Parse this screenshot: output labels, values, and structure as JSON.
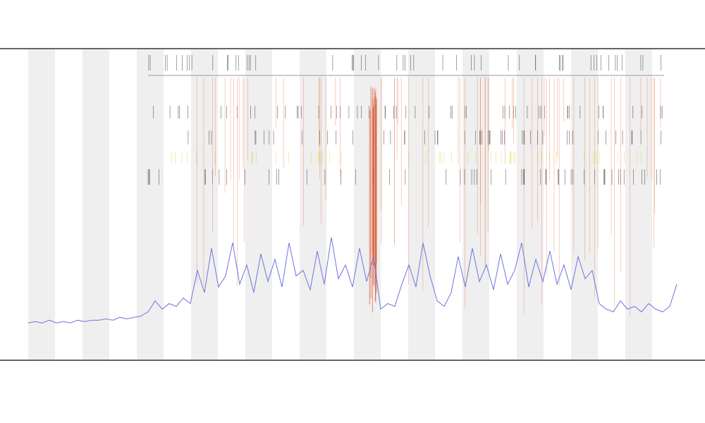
{
  "chart_data": {
    "type": "line",
    "color": "#6f73e0",
    "ylim": [
      0,
      100
    ],
    "values": [
      1,
      1.5,
      1,
      2,
      1,
      1.5,
      1,
      2,
      1.5,
      2,
      2,
      2.5,
      2,
      3,
      2.5,
      3,
      3.5,
      5,
      9,
      6,
      8,
      7,
      10,
      8,
      20,
      12,
      28,
      14,
      18,
      30,
      15,
      22,
      12,
      26,
      16,
      24,
      14,
      30,
      18,
      20,
      13,
      27,
      15,
      32,
      17,
      22,
      14,
      28,
      16,
      25,
      6,
      8,
      7,
      15,
      22,
      14,
      30,
      18,
      9,
      7,
      12,
      25,
      14,
      28,
      16,
      22,
      13,
      26,
      15,
      20,
      30,
      14,
      24,
      16,
      27,
      15,
      22,
      13,
      25,
      17,
      20,
      8,
      6,
      5,
      9,
      6,
      7,
      5,
      8,
      6,
      5,
      7,
      15
    ]
  }
}
